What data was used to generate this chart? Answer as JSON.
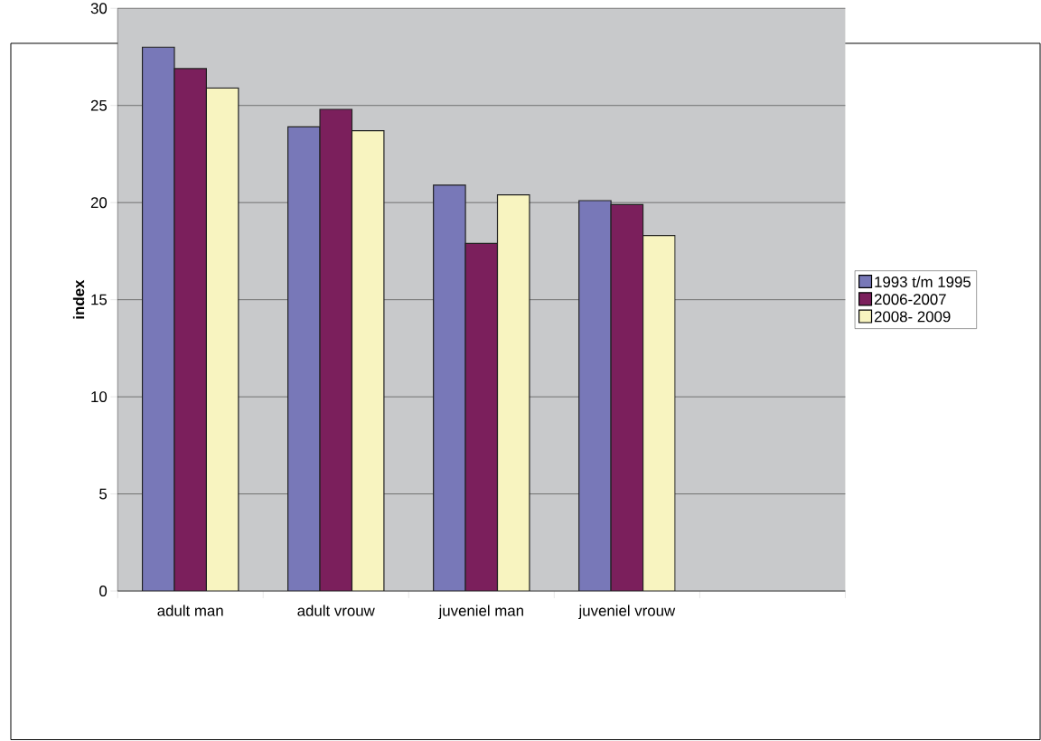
{
  "chart_data": {
    "type": "bar",
    "ylabel": "index",
    "categories": [
      "adult man",
      "adult vrouw",
      "juveniel man",
      "juveniel vrouw",
      null
    ],
    "series": [
      {
        "name": "1993 t/m 1995",
        "color": "#7878b8",
        "values": [
          28.0,
          23.9,
          20.9,
          20.1,
          null
        ]
      },
      {
        "name": "2006-2007",
        "color": "#7b1f5c",
        "values": [
          26.9,
          24.8,
          17.9,
          19.9,
          null
        ]
      },
      {
        "name": "2008- 2009",
        "color": "#f8f4c0",
        "values": [
          25.9,
          23.7,
          20.4,
          18.3,
          null
        ]
      }
    ],
    "ylim": [
      0,
      30
    ],
    "yticks": [
      0,
      5,
      10,
      15,
      20,
      25,
      30
    ],
    "grid": "y",
    "legend": "right"
  }
}
